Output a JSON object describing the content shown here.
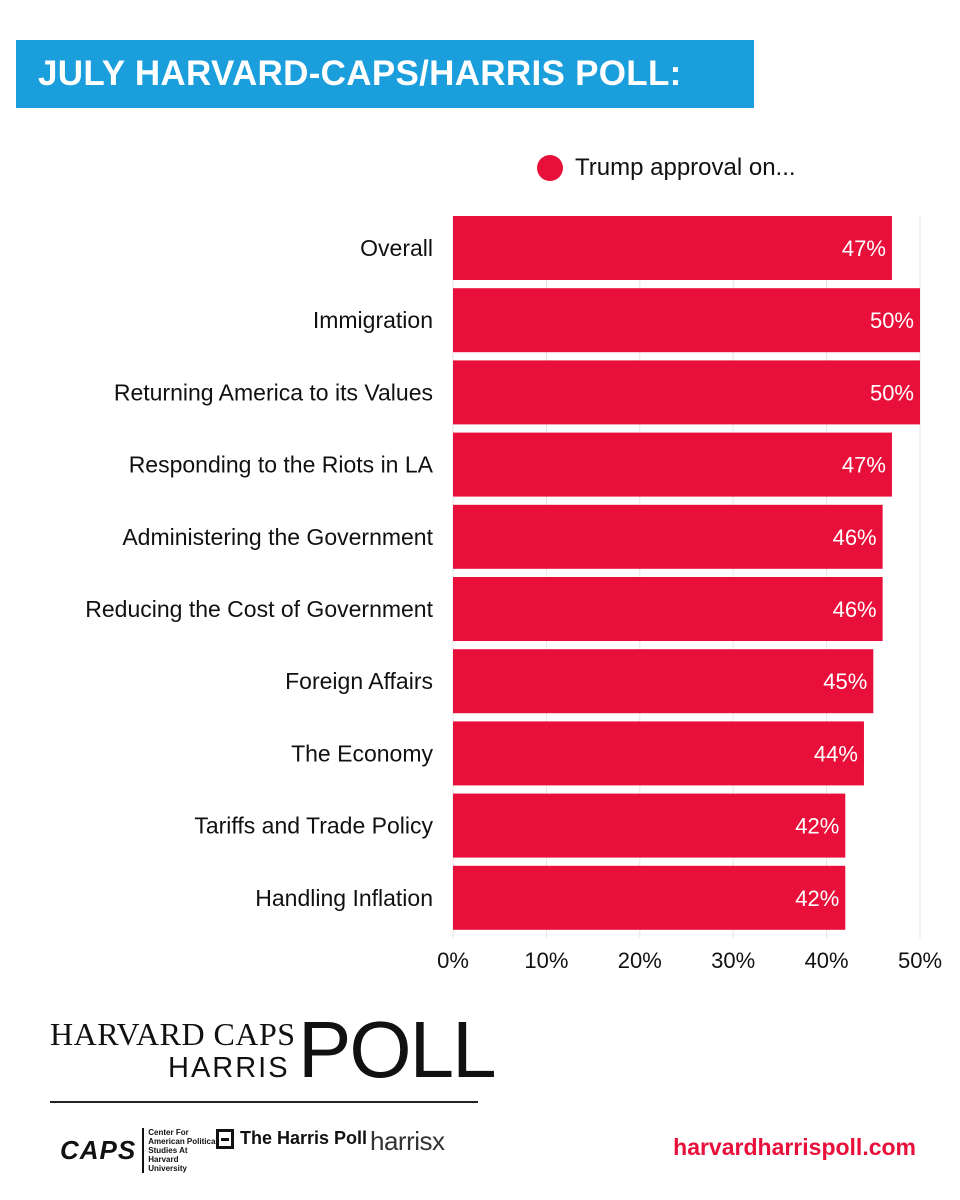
{
  "title": "JULY HARVARD-CAPS/HARRIS POLL:",
  "colors": {
    "banner": "#1b9fdc",
    "bar": "#e8103a",
    "url": "#e8103a"
  },
  "chart_data": {
    "type": "bar",
    "orientation": "horizontal",
    "legend": "Trump approval on...",
    "categories": [
      "Overall",
      "Immigration",
      "Returning America to its Values",
      "Responding to the Riots in LA",
      "Administering the Government",
      "Reducing the Cost of Government",
      "Foreign Affairs",
      "The Economy",
      "Tariffs and Trade Policy",
      "Handling Inflation"
    ],
    "values": [
      47,
      50,
      50,
      47,
      46,
      46,
      45,
      44,
      42,
      42
    ],
    "value_labels": [
      "47%",
      "50%",
      "50%",
      "47%",
      "46%",
      "46%",
      "45%",
      "44%",
      "42%",
      "42%"
    ],
    "xlim": [
      0,
      50
    ],
    "xticks": [
      0,
      10,
      20,
      30,
      40,
      50
    ],
    "xtick_labels": [
      "0%",
      "10%",
      "20%",
      "30%",
      "40%",
      "50%"
    ],
    "grid": true
  },
  "footer": {
    "logo": {
      "line1": "HARVARD CAPS",
      "line2": "HARRIS",
      "poll": "POLL"
    },
    "sponsors": {
      "caps": "CAPS",
      "caps_sub": "Center For American Political Studies At Harvard University",
      "harris_poll": "The Harris Poll",
      "harrisx": "harrisx"
    },
    "url": "harvardharrispoll.com"
  }
}
